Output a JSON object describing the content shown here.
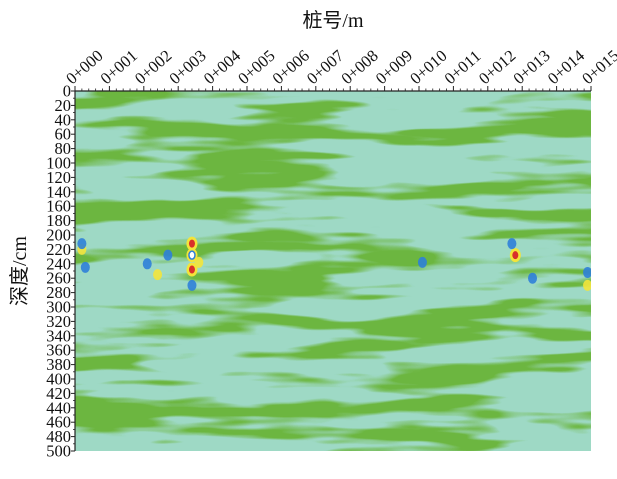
{
  "chart_data": {
    "type": "heatmap",
    "title": "",
    "xlabel": "桩号/m",
    "ylabel": "深度/cm",
    "x_ticks": [
      "0+000",
      "0+001",
      "0+002",
      "0+003",
      "0+004",
      "0+005",
      "0+006",
      "0+007",
      "0+008",
      "0+009",
      "0+010",
      "0+011",
      "0+012",
      "0+013",
      "0+014",
      "0+015"
    ],
    "y_ticks": [
      0,
      20,
      40,
      60,
      80,
      100,
      120,
      140,
      160,
      180,
      200,
      220,
      240,
      260,
      280,
      300,
      320,
      340,
      360,
      380,
      400,
      420,
      440,
      460,
      480,
      500
    ],
    "x_range": [
      0,
      15
    ],
    "y_range": [
      0,
      500
    ],
    "y_inverted": true,
    "grid": false,
    "legend": "none",
    "colors": {
      "band_dark": "#6cb63f",
      "band_light": "#9ed9c5",
      "anomaly_blue": "#2f7fd8",
      "anomaly_yellow": "#f3e43a",
      "anomaly_red": "#d9302a",
      "anomaly_white": "#ffffff"
    },
    "anomalies": [
      {
        "x": 0.2,
        "y": 220,
        "color": "yellow"
      },
      {
        "x": 0.2,
        "y": 212,
        "color": "blue"
      },
      {
        "x": 0.3,
        "y": 245,
        "color": "blue"
      },
      {
        "x": 2.1,
        "y": 240,
        "color": "blue"
      },
      {
        "x": 2.4,
        "y": 255,
        "color": "yellow"
      },
      {
        "x": 2.7,
        "y": 228,
        "color": "blue"
      },
      {
        "x": 3.4,
        "y": 212,
        "color": "red"
      },
      {
        "x": 3.4,
        "y": 228,
        "color": "white"
      },
      {
        "x": 3.4,
        "y": 248,
        "color": "red"
      },
      {
        "x": 3.4,
        "y": 270,
        "color": "blue"
      },
      {
        "x": 3.6,
        "y": 238,
        "color": "yellow"
      },
      {
        "x": 10.1,
        "y": 238,
        "color": "blue"
      },
      {
        "x": 12.8,
        "y": 228,
        "color": "red"
      },
      {
        "x": 12.7,
        "y": 212,
        "color": "blue"
      },
      {
        "x": 13.3,
        "y": 260,
        "color": "blue"
      },
      {
        "x": 14.9,
        "y": 252,
        "color": "blue"
      },
      {
        "x": 14.9,
        "y": 270,
        "color": "yellow"
      }
    ]
  }
}
